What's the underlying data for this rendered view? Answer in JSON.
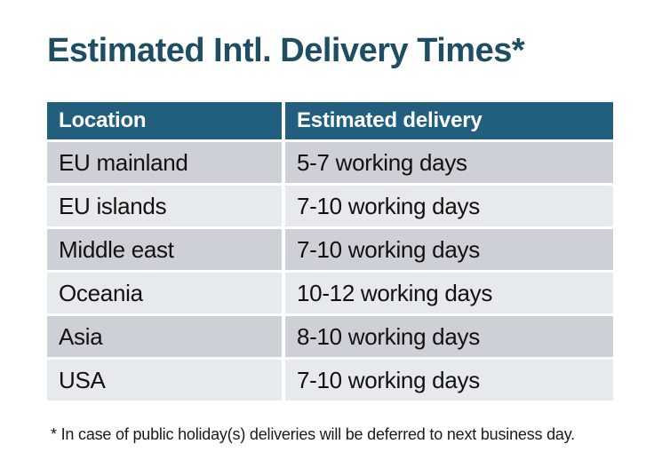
{
  "title": {
    "text": "Estimated Intl. Delivery Times*",
    "color": "#1d4e63"
  },
  "table": {
    "columns": [
      {
        "label": "Location"
      },
      {
        "label": "Estimated delivery"
      }
    ],
    "rows": [
      {
        "location": "EU mainland",
        "delivery": "5-7 working days"
      },
      {
        "location": "EU islands",
        "delivery": "7-10 working days"
      },
      {
        "location": "Middle east",
        "delivery": "7-10 working days"
      },
      {
        "location": "Oceania",
        "delivery": "10-12 working days"
      },
      {
        "location": "Asia",
        "delivery": "8-10 working days"
      },
      {
        "location": "USA",
        "delivery": "7-10 working days"
      }
    ],
    "colors": {
      "header_background": "#225f7e",
      "header_text": "#ffffff",
      "row_dark": "#cdd1d7",
      "row_light": "#e7eaec",
      "body_text": "#111111"
    }
  },
  "footnote": {
    "text": "* In case of public holiday(s) deliveries will be deferred to next business day."
  }
}
